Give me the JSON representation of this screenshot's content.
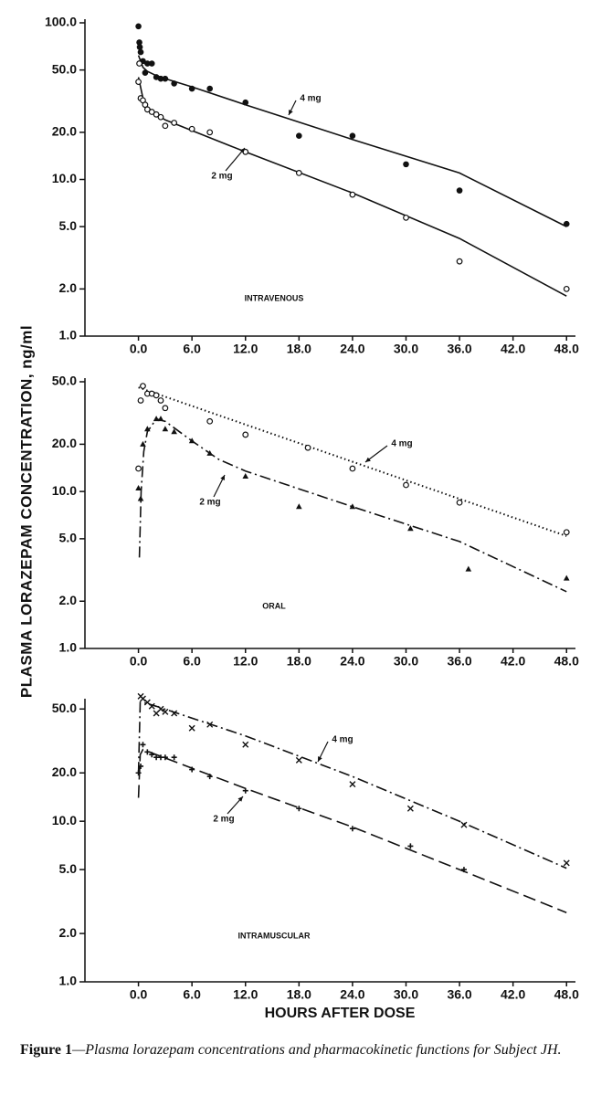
{
  "ylabel": "PLASMA LORAZEPAM CONCENTRATION, ng/ml",
  "xlabel": "HOURS AFTER DOSE",
  "caption": {
    "label": "Figure 1",
    "text": "—Plasma lorazepam concentrations and pharmacokinetic functions for Subject JH."
  },
  "chart_data": [
    {
      "type": "scatter",
      "annotation": "INTRAVENOUS",
      "log_y": true,
      "xlim": [
        -6,
        49
      ],
      "ylim": [
        1,
        100
      ],
      "xticks": [
        {
          "value": 0,
          "label": "0.0"
        },
        {
          "value": 6,
          "label": "6.0"
        },
        {
          "value": 12,
          "label": "12.0"
        },
        {
          "value": 18,
          "label": "18.0"
        },
        {
          "value": 24,
          "label": "24.0"
        },
        {
          "value": 30,
          "label": "30.0"
        },
        {
          "value": 36,
          "label": "36.0"
        },
        {
          "value": 42,
          "label": "42.0"
        },
        {
          "value": 48,
          "label": "48.0"
        }
      ],
      "yticks": [
        {
          "value": 100,
          "label": "100.0"
        },
        {
          "value": 50,
          "label": "50.0"
        },
        {
          "value": 20,
          "label": "20.0"
        },
        {
          "value": 10,
          "label": "10.0"
        },
        {
          "value": 5,
          "label": "5.0"
        },
        {
          "value": 2,
          "label": "2.0"
        },
        {
          "value": 1,
          "label": "1.0"
        }
      ],
      "series": [
        {
          "name": "4 mg",
          "marker": "filled-circle",
          "line_style": "solid",
          "color": "#111111",
          "x": [
            0,
            0.1,
            0.15,
            0.25,
            0.5,
            0.75,
            1,
            1.5,
            2,
            2.5,
            3,
            4,
            6,
            8,
            12,
            18,
            24,
            30,
            36,
            48
          ],
          "values": [
            95,
            75,
            70,
            65,
            57,
            48,
            55,
            55,
            45,
            44,
            44,
            41,
            38,
            38,
            31,
            19,
            19,
            12.5,
            8.5,
            5.2
          ],
          "fit_x": [
            0,
            0.5,
            1,
            2,
            3,
            6,
            12,
            24,
            36,
            48
          ],
          "fit_values": [
            62,
            52,
            49,
            46,
            44,
            39,
            30,
            18,
            11,
            5
          ]
        },
        {
          "name": "2 mg",
          "marker": "open-circle",
          "line_style": "solid",
          "color": "#111111",
          "x": [
            0,
            0.1,
            0.25,
            0.5,
            0.75,
            1,
            1.5,
            2,
            2.5,
            3,
            4,
            6,
            8,
            12,
            18,
            24,
            30,
            36,
            48
          ],
          "values": [
            42,
            55,
            33,
            32,
            30,
            28,
            27,
            26,
            25,
            22,
            23,
            21,
            20,
            15,
            11,
            8,
            5.7,
            3,
            2
          ],
          "fit_x": [
            0,
            0.5,
            1,
            2,
            3,
            6,
            12,
            24,
            36,
            48
          ],
          "fit_values": [
            45,
            33,
            29,
            26,
            24,
            20.5,
            15,
            8.2,
            4.2,
            1.8
          ]
        }
      ]
    },
    {
      "type": "scatter",
      "annotation": "ORAL",
      "log_y": true,
      "xlim": [
        -6,
        49
      ],
      "ylim": [
        1,
        50
      ],
      "xticks": [
        {
          "value": 0,
          "label": "0.0"
        },
        {
          "value": 6,
          "label": "6.0"
        },
        {
          "value": 12,
          "label": "12.0"
        },
        {
          "value": 18,
          "label": "18.0"
        },
        {
          "value": 24,
          "label": "24.0"
        },
        {
          "value": 30,
          "label": "30.0"
        },
        {
          "value": 36,
          "label": "36.0"
        },
        {
          "value": 42,
          "label": "42.0"
        },
        {
          "value": 48,
          "label": "48.0"
        }
      ],
      "yticks": [
        {
          "value": 50,
          "label": "50.0"
        },
        {
          "value": 20,
          "label": "20.0"
        },
        {
          "value": 10,
          "label": "10.0"
        },
        {
          "value": 5,
          "label": "5.0"
        },
        {
          "value": 2,
          "label": "2.0"
        },
        {
          "value": 1,
          "label": "1.0"
        }
      ],
      "series": [
        {
          "name": "4 mg",
          "marker": "open-circle",
          "line_style": "dotted",
          "color": "#111111",
          "x": [
            0,
            0.25,
            0.5,
            1,
            1.5,
            2,
            2.5,
            3,
            8,
            12,
            19,
            24,
            30,
            36,
            48
          ],
          "values": [
            14,
            38,
            47,
            42,
            42,
            41,
            38,
            34,
            28,
            23,
            19,
            14,
            11,
            8.5,
            5.5
          ],
          "fit_x": [
            0,
            48
          ],
          "fit_values": [
            46,
            5.2
          ]
        },
        {
          "name": "2 mg",
          "marker": "triangle",
          "line_style": "dash-dot",
          "color": "#111111",
          "x": [
            0,
            0.25,
            0.5,
            1,
            2,
            2.5,
            3,
            4,
            6,
            8,
            12,
            18,
            24,
            30.5,
            37,
            48
          ],
          "values": [
            10.5,
            9,
            20,
            25,
            29,
            29,
            25,
            24,
            21,
            17.5,
            12.5,
            8,
            8,
            5.8,
            3.2,
            2.8
          ],
          "fit_x": [
            0.1,
            0.3,
            0.6,
            1,
            2,
            3,
            6,
            9,
            12,
            24,
            36,
            48
          ],
          "fit_values": [
            3.8,
            10,
            18,
            24,
            29,
            28,
            21,
            16,
            13.5,
            8,
            4.8,
            2.3
          ]
        }
      ]
    },
    {
      "type": "scatter",
      "annotation": "INTRAMUSCULAR",
      "log_y": true,
      "xlim": [
        -6,
        49
      ],
      "ylim": [
        1,
        55
      ],
      "xticks": [
        {
          "value": 0,
          "label": "0.0"
        },
        {
          "value": 6,
          "label": "6.0"
        },
        {
          "value": 12,
          "label": "12.0"
        },
        {
          "value": 18,
          "label": "18.0"
        },
        {
          "value": 24,
          "label": "24.0"
        },
        {
          "value": 30,
          "label": "30.0"
        },
        {
          "value": 36,
          "label": "36.0"
        },
        {
          "value": 42,
          "label": "42.0"
        },
        {
          "value": 48,
          "label": "48.0"
        }
      ],
      "yticks": [
        {
          "value": 50,
          "label": "50.0"
        },
        {
          "value": 20,
          "label": "20.0"
        },
        {
          "value": 10,
          "label": "10.0"
        },
        {
          "value": 5,
          "label": "5.0"
        },
        {
          "value": 2,
          "label": "2.0"
        },
        {
          "value": 1,
          "label": "1.0"
        }
      ],
      "series": [
        {
          "name": "4 mg",
          "marker": "cross",
          "line_style": "dash-dot",
          "color": "#111111",
          "x": [
            0.25,
            0.5,
            1,
            1.5,
            2,
            2.5,
            3,
            4,
            6,
            8,
            12,
            18,
            24,
            30.5,
            36.5,
            48
          ],
          "values": [
            60,
            58,
            55,
            52,
            47,
            50,
            48,
            47,
            38,
            40,
            30,
            24,
            17,
            12,
            9.5,
            5.5
          ],
          "fit_x": [
            0,
            0.2,
            0.5,
            2,
            12,
            24,
            36,
            48
          ],
          "fit_values": [
            20,
            55,
            55,
            52,
            34,
            19,
            10,
            5.1
          ]
        },
        {
          "name": "2 mg",
          "marker": "plus",
          "line_style": "dashed",
          "color": "#111111",
          "x": [
            0,
            0.25,
            0.5,
            1,
            1.5,
            2,
            2.5,
            3,
            4,
            6,
            8,
            12,
            18,
            24,
            30.5,
            36.5
          ],
          "values": [
            20,
            22,
            30,
            27,
            26,
            25,
            25,
            25,
            25,
            21,
            19,
            15.5,
            12,
            9,
            7,
            5
          ],
          "fit_x": [
            0,
            0.2,
            0.5,
            2,
            12,
            24,
            36,
            48
          ],
          "fit_values": [
            14,
            26,
            28,
            26,
            16,
            9.2,
            5,
            2.7
          ]
        }
      ]
    }
  ]
}
